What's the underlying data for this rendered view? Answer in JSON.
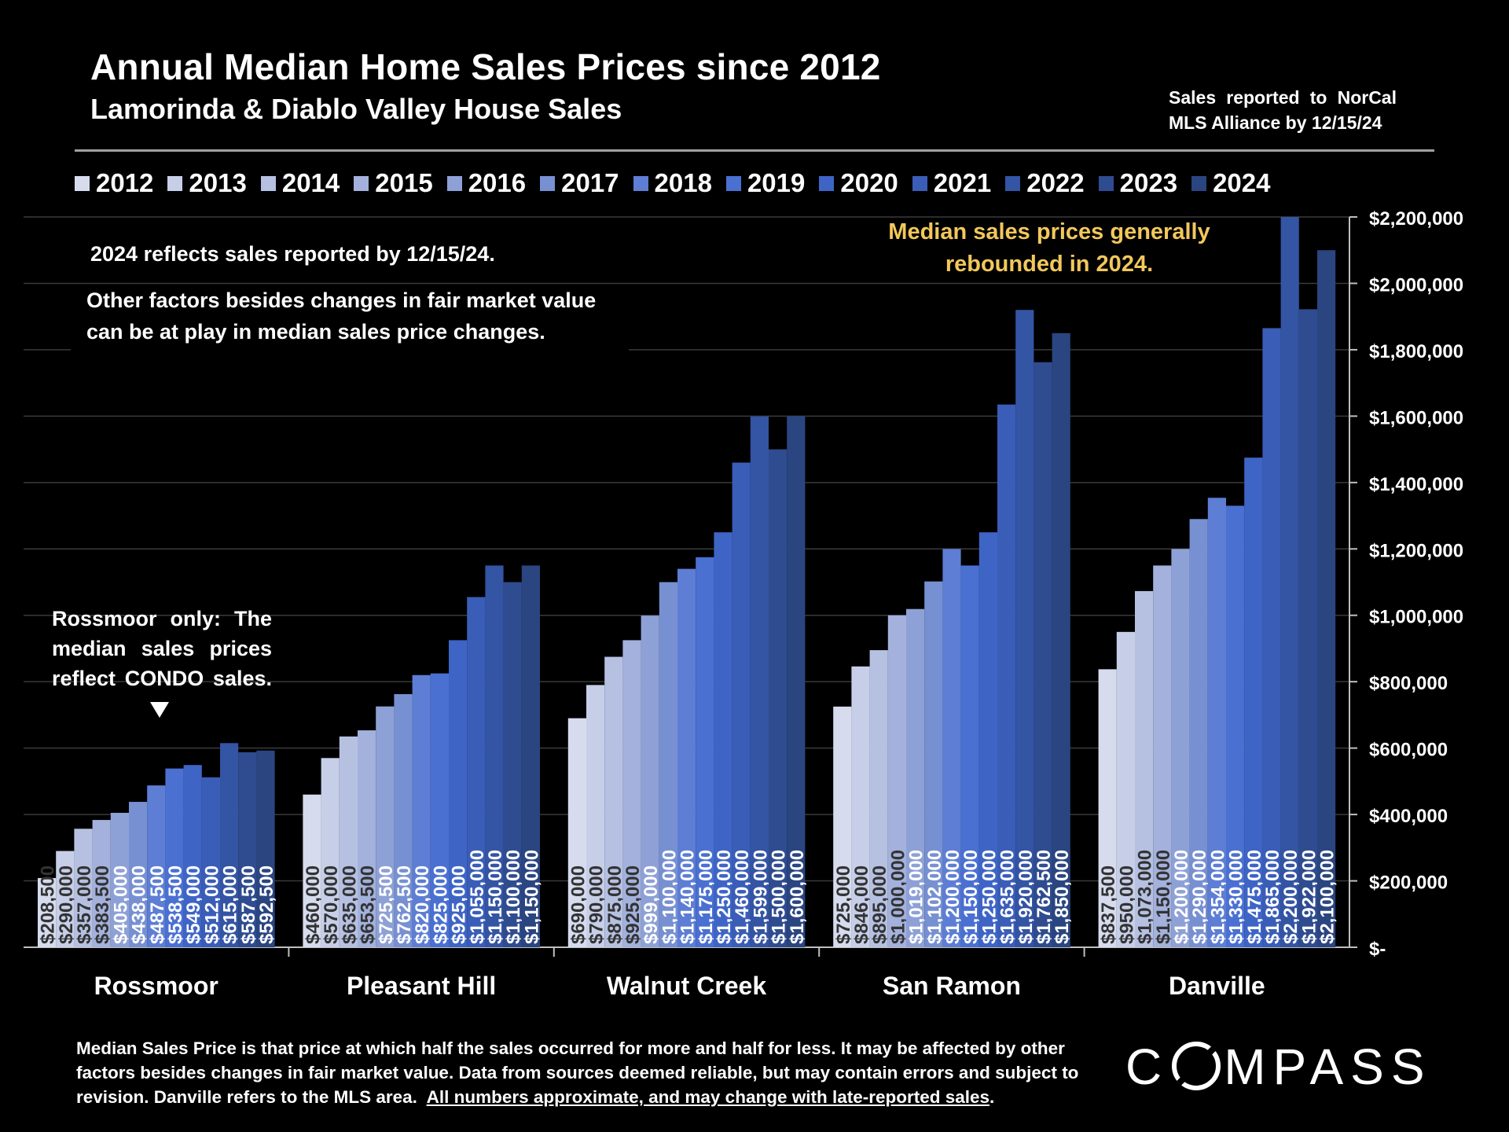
{
  "header": {
    "title": "Annual Median Home Sales Prices since 2012",
    "subtitle": "Lamorinda & Diablo Valley House Sales",
    "sales_note": "Sales reported to NorCal MLS Alliance by 12/15/24"
  },
  "notes": {
    "note_2024": "2024 reflects sales reported by 12/15/24.",
    "factors": "Other factors besides changes in fair market value can be at play in median sales price changes.",
    "rebound": "Median sales prices generally rebounded in 2024.",
    "rossmoor": "Rossmoor only: The median sales prices reflect CONDO sales."
  },
  "footer": {
    "text": "Median Sales Price is that price at which half the sales occurred for more and half for less. It may be affected by other factors besides changes in fair market value. Data from sources deemed reliable, but may contain errors and subject to revision. Danville refers to the MLS area.",
    "underlined": "All numbers approximate, and may change with late-reported sales",
    "period": "."
  },
  "logo": {
    "text": "COMPASS"
  },
  "colors": {
    "background": "#000000",
    "note_highlight": "#f2c85b",
    "series": [
      "#d6dcee",
      "#c7cfe8",
      "#b6c1e2",
      "#a3b1dc",
      "#8ea1d6",
      "#7790d2",
      "#5d7ed4",
      "#4a70d2",
      "#3e65c6",
      "#3a5db8",
      "#3454a4",
      "#2f4c90",
      "#2a4580"
    ]
  },
  "chart_data": {
    "type": "bar",
    "categories": [
      "Rossmoor",
      "Pleasant Hill",
      "Walnut Creek",
      "San Ramon",
      "Danville"
    ],
    "series": [
      {
        "name": "2012",
        "values": [
          208500,
          460000,
          690000,
          725000,
          837500
        ],
        "labels": [
          "$208,500",
          "$460,000",
          "$690,000",
          "$725,000",
          "$837,500"
        ]
      },
      {
        "name": "2013",
        "values": [
          290000,
          570000,
          790000,
          846000,
          950000
        ],
        "labels": [
          "$290,000",
          "$570,000",
          "$790,000",
          "$846,000",
          "$950,000"
        ]
      },
      {
        "name": "2014",
        "values": [
          357000,
          635000,
          875000,
          895000,
          1073000
        ],
        "labels": [
          "$357,000",
          "$635,000",
          "$875,000",
          "$895,000",
          "$1,073,000"
        ]
      },
      {
        "name": "2015",
        "values": [
          383500,
          653500,
          925000,
          1000000,
          1150000
        ],
        "labels": [
          "$383,500",
          "$653,500",
          "$925,000",
          "$1,000,000",
          "$1,150,000"
        ]
      },
      {
        "name": "2016",
        "values": [
          405000,
          725500,
          999000,
          1019000,
          1200000
        ],
        "labels": [
          "$405,000",
          "$725,500",
          "$999,000",
          "$1,019,000",
          "$1,200,000"
        ]
      },
      {
        "name": "2017",
        "values": [
          438000,
          762500,
          1100000,
          1102000,
          1290000
        ],
        "labels": [
          "$438,000",
          "$762,500",
          "$1,100,000",
          "$1,102,000",
          "$1,290,000"
        ]
      },
      {
        "name": "2018",
        "values": [
          487500,
          820000,
          1140000,
          1200000,
          1354000
        ],
        "labels": [
          "$487,500",
          "$820,000",
          "$1,140,000",
          "$1,200,000",
          "$1,354,000"
        ]
      },
      {
        "name": "2019",
        "values": [
          538500,
          825000,
          1175000,
          1150000,
          1330000
        ],
        "labels": [
          "$538,500",
          "$825,000",
          "$1,175,000",
          "$1,150,000",
          "$1,330,000"
        ]
      },
      {
        "name": "2020",
        "values": [
          549000,
          925000,
          1250000,
          1250000,
          1475000
        ],
        "labels": [
          "$549,000",
          "$925,000",
          "$1,250,000",
          "$1,250,000",
          "$1,475,000"
        ]
      },
      {
        "name": "2021",
        "values": [
          512000,
          1055000,
          1460000,
          1635000,
          1865000
        ],
        "labels": [
          "$512,000",
          "$1,055,000",
          "$1,460,000",
          "$1,635,000",
          "$1,865,000"
        ]
      },
      {
        "name": "2022",
        "values": [
          615000,
          1150000,
          1599000,
          1920000,
          2200000
        ],
        "labels": [
          "$615,000",
          "$1,150,000",
          "$1,599,000",
          "$1,920,000",
          "$2,200,000"
        ]
      },
      {
        "name": "2023",
        "values": [
          587500,
          1100000,
          1500000,
          1762500,
          1922000
        ],
        "labels": [
          "$587,500",
          "$1,100,000",
          "$1,500,000",
          "$1,762,500",
          "$1,922,000"
        ]
      },
      {
        "name": "2024",
        "values": [
          592500,
          1150000,
          1600000,
          1850000,
          2100000
        ],
        "labels": [
          "$592,500",
          "$1,150,000",
          "$1,600,000",
          "$1,850,000",
          "$2,100,000"
        ]
      }
    ],
    "y_ticks": [
      "$-",
      "$200,000",
      "$400,000",
      "$600,000",
      "$800,000",
      "$1,000,000",
      "$1,200,000",
      "$1,400,000",
      "$1,600,000",
      "$1,800,000",
      "$2,000,000",
      "$2,200,000"
    ],
    "ylim": [
      0,
      2200000
    ],
    "y_axis_side": "right",
    "grid": true,
    "legend": "top"
  }
}
